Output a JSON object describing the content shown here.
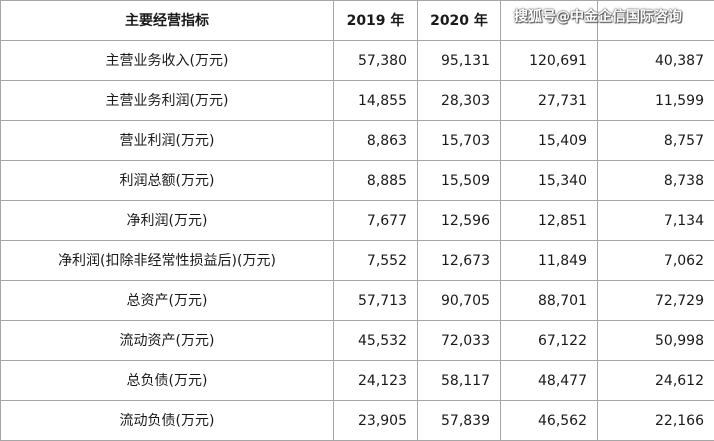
{
  "table": {
    "headers": [
      "主要经营指标",
      "2019 年",
      "2020 年",
      "",
      ""
    ],
    "rows": [
      [
        "主营业务收入(万元)",
        "57,380",
        "95,131",
        "120,691",
        "40,387"
      ],
      [
        "主营业务利润(万元)",
        "14,855",
        "28,303",
        "27,731",
        "11,599"
      ],
      [
        "营业利润(万元)",
        "8,863",
        "15,703",
        "15,409",
        "8,757"
      ],
      [
        "利润总额(万元)",
        "8,885",
        "15,509",
        "15,340",
        "8,738"
      ],
      [
        "净利润(万元)",
        "7,677",
        "12,596",
        "12,851",
        "7,134"
      ],
      [
        "净利润(扣除非经常性损益后)(万元)",
        "7,552",
        "12,673",
        "11,849",
        "7,062"
      ],
      [
        "总资产(万元)",
        "57,713",
        "90,705",
        "88,701",
        "72,729"
      ],
      [
        "流动资产(万元)",
        "45,532",
        "72,033",
        "67,122",
        "50,998"
      ],
      [
        "总负债(万元)",
        "24,123",
        "58,117",
        "48,477",
        "24,612"
      ],
      [
        "流动负债(万元)",
        "23,905",
        "57,839",
        "46,562",
        "22,166"
      ]
    ]
  },
  "watermark": "搜狐号@中金企信国际咨询"
}
